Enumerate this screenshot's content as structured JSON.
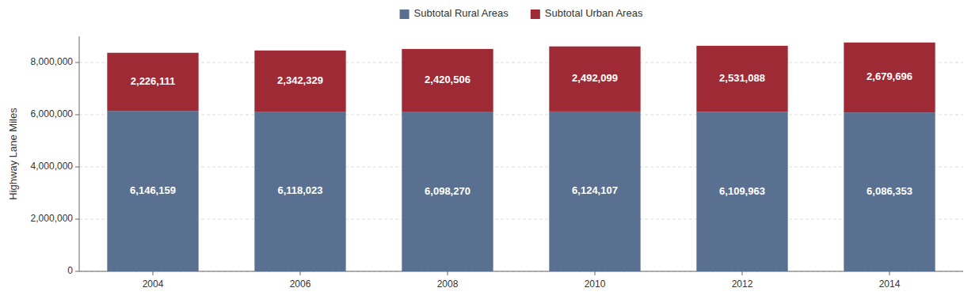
{
  "chart_data": {
    "type": "bar",
    "stacked": true,
    "categories": [
      "2004",
      "2006",
      "2008",
      "2010",
      "2012",
      "2014"
    ],
    "series": [
      {
        "name": "Subtotal Rural Areas",
        "color": "#5a7090",
        "values": [
          6146159,
          6118023,
          6098270,
          6124107,
          6109963,
          6086353
        ],
        "value_labels": [
          "6,146,159",
          "6,118,023",
          "6,098,270",
          "6,124,107",
          "6,109,963",
          "6,086,353"
        ]
      },
      {
        "name": "Subtotal Urban Areas",
        "color": "#9e2a35",
        "values": [
          2226111,
          2342329,
          2420506,
          2492099,
          2531088,
          2679696
        ],
        "value_labels": [
          "2,226,111",
          "2,342,329",
          "2,420,506",
          "2,492,099",
          "2,531,088",
          "2,679,696"
        ]
      }
    ],
    "y_label": "Highway Lane Miles",
    "ylim": [
      0,
      9000000
    ],
    "yticks": [
      0,
      {
        "value": 2000000,
        "label": "2,000,000"
      },
      {
        "value": 4000000,
        "label": "4,000,000"
      },
      {
        "value": 6000000,
        "label": "6,000,000"
      },
      {
        "value": 8000000,
        "label": "8,000,000"
      }
    ],
    "grid": true,
    "legend": "top",
    "data_labels": true
  }
}
